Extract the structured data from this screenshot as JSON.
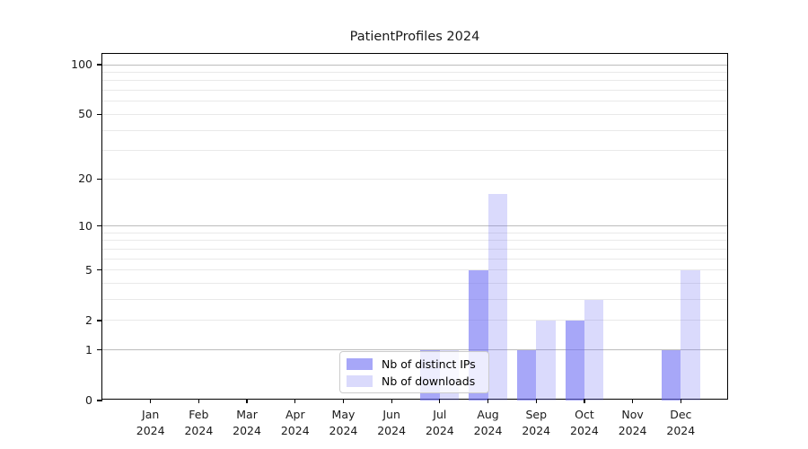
{
  "chart_data": {
    "type": "bar",
    "title": "PatientProfiles 2024",
    "categories": [
      "Jan",
      "Feb",
      "Mar",
      "Apr",
      "May",
      "Jun",
      "Jul",
      "Aug",
      "Sep",
      "Oct",
      "Nov",
      "Dec"
    ],
    "year_label": "2024",
    "series": [
      {
        "name": "Nb of distinct IPs",
        "color_hex": "#6c6cf3",
        "fill": "rgba(108,108,243,0.6)",
        "values": [
          0,
          0,
          0,
          0,
          0,
          0,
          1,
          5,
          1,
          2,
          0,
          1
        ]
      },
      {
        "name": "Nb of downloads",
        "color_hex": "#6c6cf3",
        "fill": "rgba(108,108,243,0.25)",
        "values": [
          0,
          0,
          0,
          0,
          0,
          0,
          1,
          16,
          2,
          3,
          0,
          5
        ]
      }
    ],
    "yscale": "log1p",
    "yticks": [
      0,
      1,
      2,
      5,
      10,
      20,
      50,
      100
    ],
    "gridlines_major": [
      1,
      10,
      100
    ],
    "gridlines_minor": [
      2,
      3,
      4,
      5,
      6,
      7,
      8,
      9,
      20,
      30,
      40,
      50,
      60,
      70,
      80,
      90
    ],
    "ylim": [
      0,
      116
    ],
    "grid": true,
    "legend_position": "lower center"
  },
  "colors": {
    "background": "#ffffff",
    "axis": "#000000",
    "grid_major": "#bcbcbc",
    "grid_minor": "#e9e9e9",
    "bar_dark_on_white": "#a7a7f7",
    "bar_light_on_white": "#dcdcfa",
    "legend_border": "#cccccc"
  }
}
